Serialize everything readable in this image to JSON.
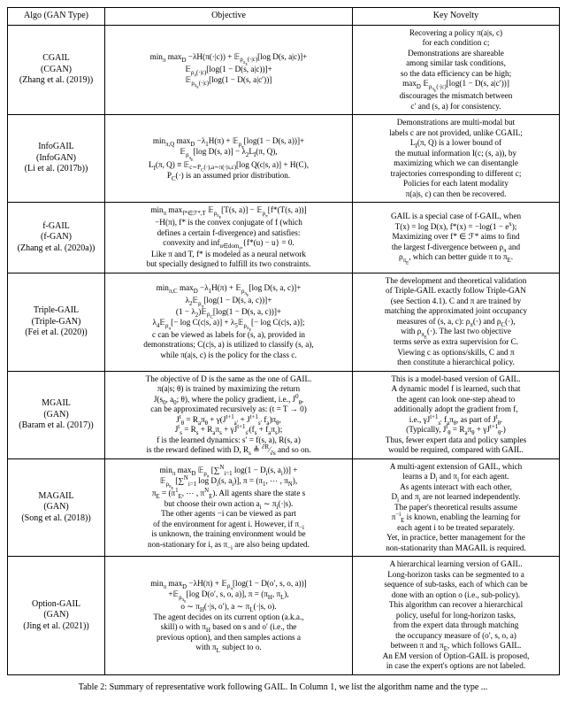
{
  "table": {
    "headers": {
      "algo": "Algo (GAN Type)",
      "objective": "Objective",
      "novelty": "Key Novelty"
    },
    "rows": [
      {
        "algo": "CGAIL<br>(CGAN)<br>(Zhang et al. (2019))",
        "objective": "min<sub>π</sub> max<sub>D</sub> −λH(π(·|c)) + 𝔼<sub>ρ<sub>π<sub>E</sub></sub>(·|c)</sub>[log D(s, a|c)]+<br>𝔼<sub>ρ<sub>π</sub>(·|c)</sub>[log(1 − D(s, a|c))]+<br>𝔼<sub>ρ<sub>π<sub>E</sub></sub>(·|c)</sub>[log(1 − D(s, a|c′))]",
        "novelty": "Recovering a policy π(a|s, c)<br>for each condition c;<br>Demonstrations are shareable<br>among similar task conditions,<br>so the data efficiency can be high;<br>max<sub>D</sub> 𝔼<sub>ρ<sub>π<sub>E</sub></sub>(·|c)</sub>[log(1 − D(s, a|c′))]<br>discourages the mismatch between<br>c′ and (s, a) for consistency."
      },
      {
        "algo": "InfoGAIL<br>(InfoGAN)<br>(Li et al. (2017b))",
        "objective": "min<sub>π,Q</sub> max<sub>D</sub> −λ<sub>1</sub>H(π) + 𝔼<sub>ρ<sub>π</sub></sub>[log(1 − D(s, a))]+<br>𝔼<sub>ρ<sub>π<sub>E</sub></sub></sub>[log D(s, a)] − λ<sub>2</sub>L<sub>I</sub>(π, Q),<br>L<sub>I</sub>(π, Q) ≡ 𝔼<sub>c∼P<sub>C</sub>(·),a∼π(·|s,c)</sub>[log Q(c|s, a)] + H(C),<br>P<sub>C</sub>(·) is an assumed prior distribution.",
        "novelty": "Demonstrations are multi-modal but<br>labels c are not provided, unlike CGAIL;<br>L<sub>I</sub>(π, Q) is a lower bound of<br>the mutual information I(c; (s, a)), by<br>maximizing which we can disentangle<br>trajectories corresponding to different c;<br>Policies for each latent modality<br>π(a|s, c) can then be recovered."
      },
      {
        "algo": "f-GAIL<br>(f-GAN)<br>(Zhang et al. (2020a))",
        "objective": "min<sub>π</sub> max<sub>f*∈ℱ*,T</sub> 𝔼<sub>ρ<sub>π<sub>E</sub></sub></sub>[T(s, a)] − 𝔼<sub>ρ<sub>π</sub></sub>[f*(T(s, a))]<br>−H(π), f* is the convex conjugate of f (which<br>defines a certain f-divergence) and satisfies:<br>convexity and inf<sub>u∈dom<sub>f*</sub></sub>{f*(u) − u} = 0.<br>Like π and T, f* is modeled as a neural network<br>but specially designed to fulfill its two constraints.",
        "novelty": "GAIL is a special case of f-GAIL, when<br>T(x) = log D(x), f*(x) = −log(1 − e<sup>x</sup>);<br>Maximizing over f* ∈ ℱ* aims to find<br>the largest f-divergence between ρ<sub>π</sub> and<br>ρ<sub>π<sub>E</sub></sub>, which can better guide π to π<sub>E</sub>."
      },
      {
        "algo": "Triple-GAIL<br>(Triple-GAN)<br>(Fei et al. (2020))",
        "objective": "min<sub>π,C</sub> max<sub>D</sub> −λ<sub>1</sub>H(π) + 𝔼<sub>ρ<sub>π<sub>E</sub></sub></sub>[log D(s, a, c)]+<br>λ<sub>2</sub>𝔼<sub>ρ<sub>π</sub></sub>[log(1 − D(s, a, c))]+<br>(1 − λ<sub>2</sub>)𝔼<sub>ρ<sub>C</sub></sub>[log(1 − D(s, a, c))]+<br>λ<sub>4</sub>𝔼<sub>ρ<sub>π</sub></sub>[− log C(c|s, a)] + λ<sub>5</sub>𝔼<sub>ρ<sub>π<sub>E</sub></sub></sub>[− log C(c|s, a)];<br>c can be viewed as labels for (s, a), provided in<br>demonstrations; C(c|s, a) is utilized to classify (s, a),<br>while π(a|s, c) is the policy for the class c.",
        "novelty": "The development and theoretical validation<br>of Triple-GAIL exactly follow Triple-GAN<br>(see Section 4.1). C and π are trained by<br>matching the approximated joint occupancy<br>measures of (s, a, c): ρ<sub>π</sub>(·) and ρ<sub>C</sub>(·),<br>with ρ<sub>π<sub>E</sub></sub>(·). The last two objective<br>terms serve as extra supervision for C.<br>Viewing c as options/skills, C and π<br>then constitute a hierarchical policy."
      },
      {
        "algo": "MGAIL<br>(GAN)<br>(Baram et al. (2017))",
        "objective": "The objective of D is the same as the one of GAIL.<br>π(a|s; θ) is trained by maximizing the return<br>J(s<sub>0</sub>, a<sub>0</sub>; θ), where the policy gradient, i.e., J<sup>0</sup><sub>θ</sub>,<br>can be approximated recursively as: (t = T → 0)<br>J<sup>t</sup><sub>θ</sub> = R<sub>a</sub>π<sub>θ</sub> + γ(J<sup>t+1</sup><sub>a′</sub> + J<sup>t+1</sup><sub>s′</sub> f<sub>a</sub>)π<sub>θ</sub>,<br>J<sup>t</sup><sub>s</sub> = R<sub>s</sub> + R<sub>a</sub>π<sub>s</sub> + γJ<sup>t+1</sup><sub>s′</sub>(f<sub>s</sub> + f<sub>a</sub>π<sub>s</sub>);<br>f is the learned dynamics: s′ = f(s, a), R(s, a)<br>is the reward defined with D, R<sub>s</sub> ≜ <sup>∂R</sup>⁄<sub>∂s</sub> and so on.",
        "novelty": "This is a model-based version of GAIL.<br>A dynamic model f is learned, such that<br>the agent can look one-step ahead to<br>additionally adopt the gradient from f,<br>i.e., γJ<sup>t+1</sup><sub>s′</sub> f<sub>a</sub>π<sub>θ</sub>, as part of J<sup>t</sup><sub>θ</sub>.<br>(Typically, J<sup>t</sup><sub>θ</sub> = R<sub>a</sub>π<sub>θ</sub> + γJ<sup>t+1</sup><sub>θ</sub>.)<br>Thus, fewer expert data and policy samples<br>would be required, compared with GAIL."
      },
      {
        "algo": "MAGAIL<br>(GAN)<br>(Song et al. (2018))",
        "objective": "min<sub>π</sub> max<sub>D</sub> 𝔼<sub>ρ<sub>π</sub></sub> [∑<sup>N</sup><sub>i=1</sub> log(1 − D<sub>i</sub>(s, a<sub>i</sub>))] +<br>𝔼<sub>ρ<sub>π<sub>E</sub></sub></sub> [∑<sup>N</sup><sub>i=1</sub> log D<sub>i</sub>(s, a<sub>i</sub>)], π = (π<sub>1</sub>, ⋯ , π<sub>N</sub>),<br>π<sub>E</sub> = (π<sup>1</sup><sub>E</sub>, ⋯ , π<sup>N</sup><sub>E</sub>). All agents share the state s<br>but choose their own action a<sub>i</sub> ∼ π<sub>i</sub>(·|s).<br>The other agents −i can be viewed as part<br>of the environment for agent i. However, if π<sub>−i</sub><br>is unknown, the training environment would be<br>non-stationary for i, as π<sub>−i</sub> are also being updated.",
        "novelty": "A multi-agent extension of GAIL, which<br>learns a D<sub>i</sub> and π<sub>i</sub> for each agent.<br>As agents interact with each other,<br>D<sub>i</sub> and π<sub>i</sub> are not learned independently.<br>The paper's theoretical results assume<br>π<sup>−i</sup><sub>E</sub> is known, enabling the learning for<br>each agent i to be treated separately.<br>Yet, in practice, better management for the<br>non-stationarity than MAGAIL is required."
      },
      {
        "algo": "Option-GAIL<br>(GAN)<br>(Jing et al. (2021))",
        "objective": "min<sub>π</sub> max<sub>D</sub> −λH(π) + 𝔼<sub>ρ<sub>π</sub></sub>[log(1 − D(o′, s, o, a))]<br>+𝔼<sub>ρ<sub>π<sub>E</sub></sub></sub>[log D(o′, s, o, a)], π = (π<sub>H</sub>, π<sub>L</sub>),<br>o ∼ π<sub>H</sub>(·|s, o′), a ∼ π<sub>L</sub>(·|s, o).<br>The agent decides on its current option (a.k.a.,<br>skill) o with π<sub>H</sub> based on s and o′ (i.e., the<br>previous option), and then samples actions a<br>with π<sub>L</sub> subject to o.",
        "novelty": "A hierarchical learning version of GAIL.<br>Long-horizon tasks can be segmented to a<br>sequence of sub-tasks, each of which can be<br>done with an option o (i.e., sub-policy).<br>This algorithm can recover a hierarchical<br>policy, useful for long-horizon tasks,<br>from the expert data through matching<br>the occupancy measure of (o′, s, o, a)<br>between π and π<sub>E</sub>, which follows GAIL.<br>An EM version of Option-GAIL is proposed,<br>in case the expert's options are not labeled."
      }
    ],
    "caption": "Table 2: Summary of representative work following GAIL. In Column 1, we list the algorithm name and the type ..."
  }
}
